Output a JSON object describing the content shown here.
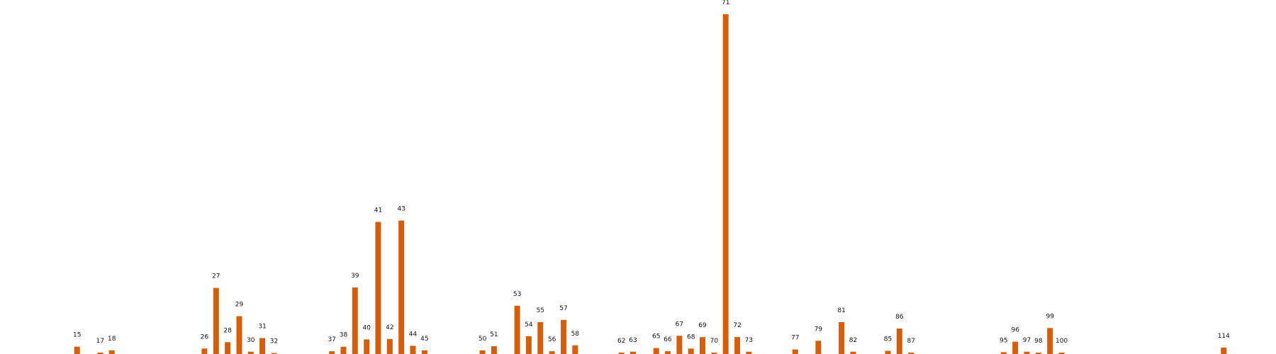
{
  "chart_data": {
    "type": "bar",
    "color": "#d45e0c",
    "grid": false,
    "legend": "none",
    "xlim": [
      10,
      116
    ],
    "ylim": [
      0,
      74
    ],
    "categories": [
      "15",
      "17",
      "18",
      "26",
      "27",
      "28",
      "29",
      "30",
      "31",
      "32",
      "37",
      "38",
      "39",
      "40",
      "41",
      "42",
      "43",
      "44",
      "45",
      "50",
      "51",
      "53",
      "54",
      "55",
      "56",
      "57",
      "58",
      "62",
      "63",
      "65",
      "66",
      "67",
      "68",
      "69",
      "70",
      "71",
      "72",
      "73",
      "77",
      "79",
      "81",
      "82",
      "85",
      "86",
      "87",
      "95",
      "96",
      "97",
      "98",
      "99",
      "100",
      "114"
    ],
    "x": [
      15,
      17,
      18,
      26,
      27,
      28,
      29,
      30,
      31,
      32,
      37,
      38,
      39,
      40,
      41,
      42,
      43,
      44,
      45,
      50,
      51,
      53,
      54,
      55,
      56,
      57,
      58,
      62,
      63,
      65,
      66,
      67,
      68,
      69,
      70,
      71,
      72,
      73,
      77,
      79,
      81,
      82,
      85,
      86,
      87,
      95,
      96,
      97,
      98,
      99,
      100,
      114
    ],
    "values": [
      1.6,
      0.3,
      0.8,
      1.2,
      14.5,
      2.6,
      8.3,
      0.5,
      3.5,
      0.2,
      0.6,
      1.6,
      14.6,
      3.2,
      29,
      3.3,
      29.3,
      1.8,
      0.8,
      0.8,
      1.7,
      10.6,
      3.9,
      7,
      0.6,
      7.5,
      1.9,
      0.3,
      0.5,
      1.3,
      0.6,
      4,
      1.2,
      3.7,
      0.3,
      74.6,
      3.7,
      0.5,
      1,
      2.9,
      7,
      0.5,
      0.7,
      5.6,
      0.3,
      0.4,
      2.7,
      0.5,
      0.3,
      5.7,
      0.3,
      1.4
    ]
  }
}
